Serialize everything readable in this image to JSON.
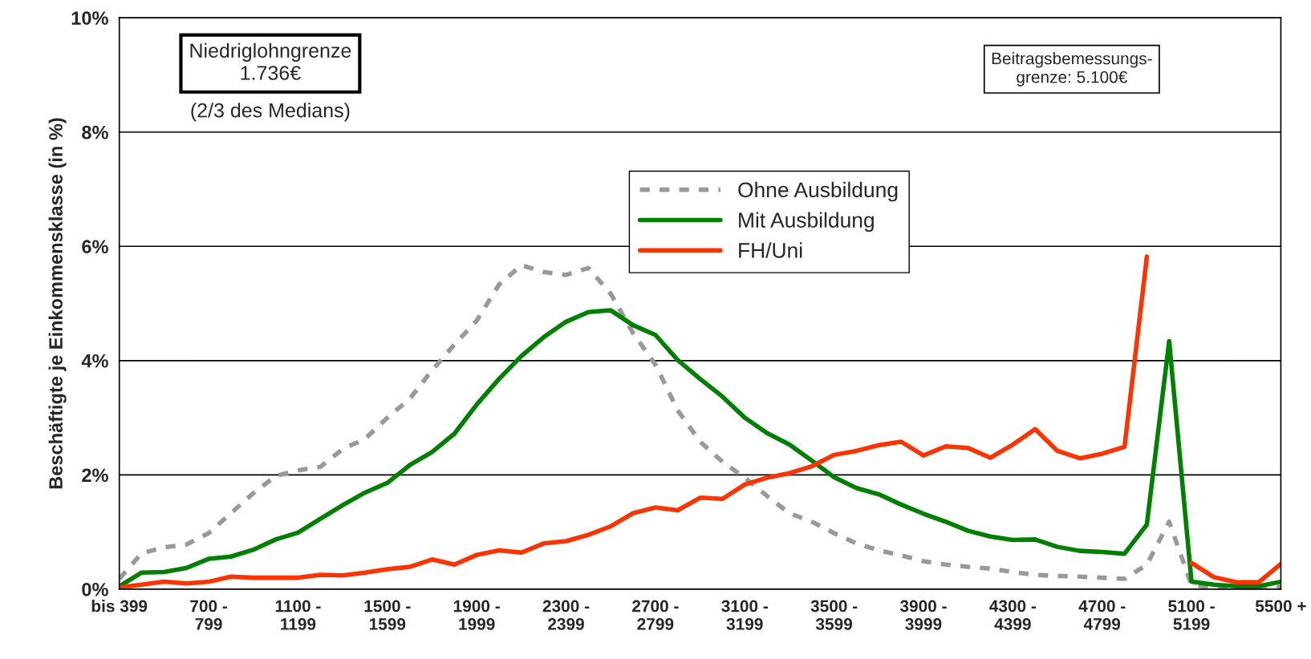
{
  "chart_data": {
    "type": "line",
    "ylabel": "Beschäftigte je Einkommensklasse (in %)",
    "categories": [
      "bis 399",
      null,
      null,
      null,
      "700 -\n799",
      null,
      null,
      null,
      "1100 -\n1199",
      null,
      null,
      null,
      "1500 -\n1599",
      null,
      null,
      null,
      "1900 -\n1999",
      null,
      null,
      null,
      "2300 -\n2399",
      null,
      null,
      null,
      "2700 -\n2799",
      null,
      null,
      null,
      "3100 -\n3199",
      null,
      null,
      null,
      "3500 -\n3599",
      null,
      null,
      null,
      "3900 -\n3999",
      null,
      null,
      null,
      "4300 -\n4399",
      null,
      null,
      null,
      "4700 -\n4799",
      null,
      null,
      null,
      "5100 -\n5199",
      null,
      null,
      null,
      "5500 +"
    ],
    "series": [
      {
        "name": "Ohne Ausbildung",
        "color": "#999999",
        "line_style": "dashed",
        "values": [
          0.18,
          0.63,
          0.73,
          0.78,
          0.98,
          1.33,
          1.68,
          1.98,
          2.08,
          2.14,
          2.45,
          2.63,
          3.0,
          3.33,
          3.83,
          4.28,
          4.7,
          5.33,
          5.67,
          5.55,
          5.5,
          5.62,
          5.17,
          4.48,
          3.93,
          3.13,
          2.58,
          2.23,
          1.95,
          1.63,
          1.33,
          1.18,
          0.98,
          0.8,
          0.68,
          0.59,
          0.49,
          0.43,
          0.39,
          0.36,
          0.3,
          0.25,
          0.23,
          0.22,
          0.2,
          0.18,
          0.43,
          1.18,
          0.07,
          0.03,
          0.02,
          0.02,
          0.04
        ]
      },
      {
        "name": "Mit Ausbildung",
        "color": "#008000",
        "line_style": "solid",
        "values": [
          0.05,
          0.29,
          0.3,
          0.37,
          0.53,
          0.57,
          0.69,
          0.87,
          0.99,
          1.23,
          1.47,
          1.69,
          1.86,
          2.17,
          2.4,
          2.72,
          3.23,
          3.68,
          4.08,
          4.41,
          4.68,
          4.85,
          4.88,
          4.62,
          4.45,
          4.01,
          3.68,
          3.37,
          3.0,
          2.73,
          2.53,
          2.25,
          1.96,
          1.77,
          1.66,
          1.48,
          1.32,
          1.18,
          1.02,
          0.92,
          0.86,
          0.87,
          0.74,
          0.67,
          0.65,
          0.62,
          1.13,
          4.34,
          0.13,
          0.08,
          0.05,
          0.05,
          0.13
        ]
      },
      {
        "name": "FH/Uni",
        "color": "#ff3300",
        "line_style": "solid",
        "values": [
          0.03,
          0.08,
          0.13,
          0.1,
          0.13,
          0.22,
          0.2,
          0.2,
          0.2,
          0.25,
          0.24,
          0.29,
          0.35,
          0.39,
          0.52,
          0.43,
          0.6,
          0.68,
          0.64,
          0.8,
          0.84,
          0.95,
          1.1,
          1.33,
          1.43,
          1.38,
          1.6,
          1.58,
          1.83,
          1.95,
          2.03,
          2.15,
          2.35,
          2.42,
          2.52,
          2.58,
          2.34,
          2.5,
          2.47,
          2.3,
          2.53,
          2.8,
          2.42,
          2.29,
          2.37,
          2.49,
          5.82,
          null,
          0.46,
          0.21,
          0.12,
          0.12,
          0.44
        ]
      }
    ],
    "ylim": [
      0,
      10
    ],
    "yticks": [
      {
        "value": 0,
        "label": "0%"
      },
      {
        "value": 2,
        "label": "2%"
      },
      {
        "value": 4,
        "label": "4%"
      },
      {
        "value": 6,
        "label": "6%"
      },
      {
        "value": 8,
        "label": "8%"
      },
      {
        "value": 10,
        "label": "10%"
      }
    ],
    "grid": "y",
    "legend": "top",
    "annotations": [
      "Niedriglohngrenze\n1.736€",
      "(2/3 des Medians)",
      "Beitragsbemessungs-\ngrenze: 5.100€"
    ]
  }
}
